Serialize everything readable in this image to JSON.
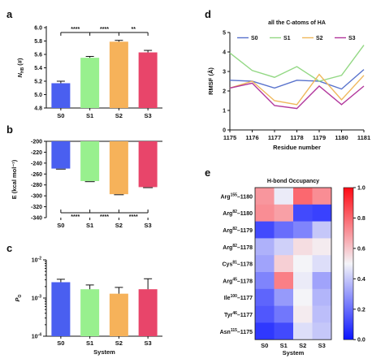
{
  "colors": {
    "S0": "#4a5ff0",
    "S1": "#98f08e",
    "S2": "#f6b25a",
    "S3": "#e8456a",
    "line_S0": "#5872cc",
    "line_S1": "#93d884",
    "line_S2": "#efb85c",
    "line_S3": "#b2379c"
  },
  "chart_data": [
    {
      "panel": "a",
      "type": "bar",
      "categories": [
        "S0",
        "S1",
        "S2",
        "S3"
      ],
      "values": [
        5.17,
        5.55,
        5.79,
        5.63
      ],
      "errors": [
        0.03,
        0.02,
        0.02,
        0.03
      ],
      "ylabel_main": "N",
      "ylabel_sub": "HB",
      "ylabel_unit": " (#)",
      "ylim": [
        4.8,
        6.0
      ],
      "yticks": [
        "4.8",
        "5.0",
        "5.2",
        "5.4",
        "5.6",
        "5.8",
        "6.0"
      ],
      "significance": [
        {
          "from": 0,
          "to": 1,
          "label": "****"
        },
        {
          "from": 1,
          "to": 2,
          "label": "****"
        },
        {
          "from": 2,
          "to": 3,
          "label": "**"
        }
      ]
    },
    {
      "panel": "b",
      "type": "bar",
      "categories": [
        "S0",
        "S1",
        "S2",
        "S3"
      ],
      "values": [
        -250,
        -273,
        -297,
        -284
      ],
      "errors": [
        1,
        1,
        1,
        1
      ],
      "ylabel": "E (kcal mol⁻¹)",
      "ylim": [
        -340,
        -200
      ],
      "yticks": [
        "-200",
        "-220",
        "-240",
        "-260",
        "-280",
        "-300",
        "-320",
        "-340"
      ],
      "significance": [
        {
          "from": 0,
          "to": 1,
          "label": "****"
        },
        {
          "from": 1,
          "to": 2,
          "label": "****"
        },
        {
          "from": 2,
          "to": 3,
          "label": "****"
        }
      ]
    },
    {
      "panel": "c",
      "type": "bar",
      "categories": [
        "S0",
        "S1",
        "S2",
        "S3"
      ],
      "values": [
        0.0026,
        0.0017,
        0.0013,
        0.0017
      ],
      "err_high": [
        0.0031,
        0.0022,
        0.0019,
        0.0032
      ],
      "ylabel_main": "P",
      "ylabel_sub": "O",
      "xlabel": "System",
      "yscale": "log",
      "ylim": [
        0.0001,
        0.01
      ],
      "yticks_exp": [
        "-4",
        "-3",
        "-2"
      ]
    },
    {
      "panel": "d",
      "type": "line",
      "title": "all the C-atoms of HA",
      "xlabel": "Residue number",
      "ylabel": "RMSF (Å)",
      "x": [
        1175,
        1176,
        1177,
        1178,
        1179,
        1180,
        1181
      ],
      "xticks": [
        "1175",
        "1176",
        "1177",
        "1178",
        "1179",
        "1180",
        "1181"
      ],
      "ylim": [
        0,
        5
      ],
      "yticks": [
        "0",
        "1",
        "2",
        "3",
        "4",
        "5"
      ],
      "legend_position": "top",
      "series": [
        {
          "name": "S0",
          "values": [
            2.55,
            2.5,
            2.15,
            2.55,
            2.5,
            2.1,
            3.1
          ]
        },
        {
          "name": "S1",
          "values": [
            3.95,
            3.05,
            2.7,
            3.25,
            2.5,
            2.8,
            4.35
          ]
        },
        {
          "name": "S2",
          "values": [
            2.15,
            2.5,
            1.5,
            1.3,
            2.85,
            1.55,
            2.8
          ]
        },
        {
          "name": "S3",
          "values": [
            2.15,
            2.4,
            1.25,
            1.1,
            2.25,
            1.3,
            2.25
          ]
        }
      ]
    },
    {
      "panel": "e",
      "type": "heatmap",
      "title": "H-bond Occupancy",
      "xlabel": "System",
      "columns": [
        "S0",
        "S1",
        "S2",
        "S3"
      ],
      "rows": [
        {
          "res": "Arg",
          "sup": "155",
          "tail": "–1180",
          "values": [
            0.7,
            0.48,
            0.8,
            0.72
          ]
        },
        {
          "res": "Arg",
          "sup": "82",
          "tail": "–1180",
          "values": [
            0.72,
            0.68,
            0.12,
            0.1
          ]
        },
        {
          "res": "Arg",
          "sup": "82",
          "tail": "–1179",
          "values": [
            0.12,
            0.2,
            0.25,
            0.4
          ]
        },
        {
          "res": "Arg",
          "sup": "82",
          "tail": "–1178",
          "values": [
            0.35,
            0.42,
            0.55,
            0.52
          ]
        },
        {
          "res": "Cys",
          "sup": "81",
          "tail": "–1178",
          "values": [
            0.32,
            0.58,
            0.5,
            0.45
          ]
        },
        {
          "res": "Arg",
          "sup": "45",
          "tail": "–1178",
          "values": [
            0.25,
            0.75,
            0.48,
            0.32
          ]
        },
        {
          "res": "Ile",
          "sup": "100",
          "tail": "–1177",
          "values": [
            0.18,
            0.3,
            0.5,
            0.36
          ]
        },
        {
          "res": "Tyr",
          "sup": "46",
          "tail": "–1177",
          "values": [
            0.15,
            0.22,
            0.52,
            0.38
          ]
        },
        {
          "res": "Asn",
          "sup": "115",
          "tail": "–1175",
          "values": [
            0.08,
            0.12,
            0.45,
            0.4
          ]
        }
      ],
      "colorbar_ticks": [
        "0.0",
        "0.2",
        "0.4",
        "0.6",
        "0.8",
        "1.0"
      ],
      "vmin": 0,
      "vmax": 1
    }
  ]
}
